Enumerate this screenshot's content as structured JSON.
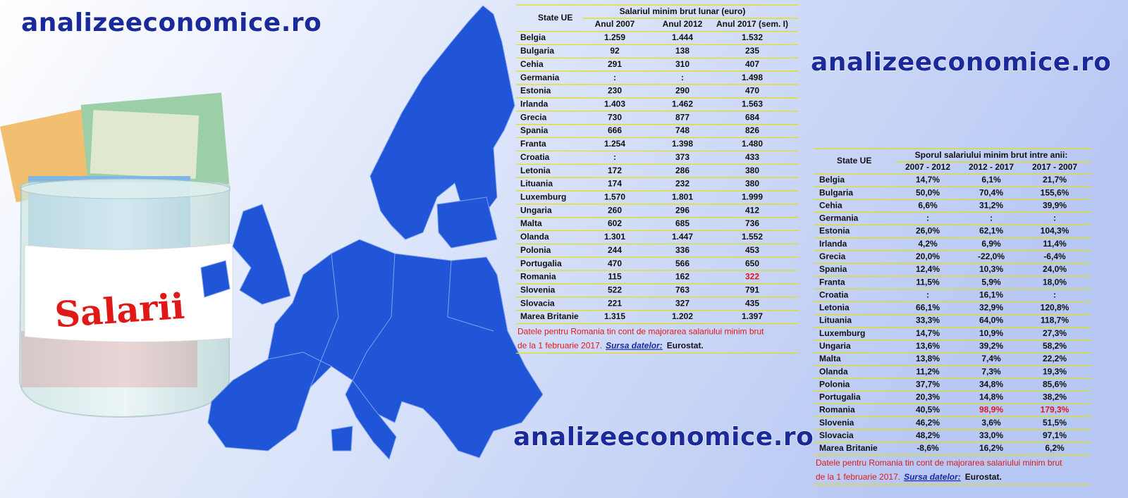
{
  "watermarks": [
    "analizeeconomice.ro",
    "analizeeconomice.ro",
    "analizeeconomice.ro"
  ],
  "jar_label": "Salarii",
  "highlight_color": "#e01818",
  "table1": {
    "col0": "State UE",
    "title": "Salariul minim brut lunar (euro)",
    "columns": [
      "Anul 2007",
      "Anul 2012",
      "Anul 2017 (sem. I)"
    ],
    "rows": [
      [
        "Belgia",
        "1.259",
        "1.444",
        "1.532"
      ],
      [
        "Bulgaria",
        "92",
        "138",
        "235"
      ],
      [
        "Cehia",
        "291",
        "310",
        "407"
      ],
      [
        "Germania",
        ":",
        ":",
        "1.498"
      ],
      [
        "Estonia",
        "230",
        "290",
        "470"
      ],
      [
        "Irlanda",
        "1.403",
        "1.462",
        "1.563"
      ],
      [
        "Grecia",
        "730",
        "877",
        "684"
      ],
      [
        "Spania",
        "666",
        "748",
        "826"
      ],
      [
        "Franta",
        "1.254",
        "1.398",
        "1.480"
      ],
      [
        "Croatia",
        ":",
        "373",
        "433"
      ],
      [
        "Letonia",
        "172",
        "286",
        "380"
      ],
      [
        "Lituania",
        "174",
        "232",
        "380"
      ],
      [
        "Luxemburg",
        "1.570",
        "1.801",
        "1.999"
      ],
      [
        "Ungaria",
        "260",
        "296",
        "412"
      ],
      [
        "Malta",
        "602",
        "685",
        "736"
      ],
      [
        "Olanda",
        "1.301",
        "1.447",
        "1.552"
      ],
      [
        "Polonia",
        "244",
        "336",
        "453"
      ],
      [
        "Portugalia",
        "470",
        "566",
        "650"
      ],
      [
        "Romania",
        "115",
        "162",
        "322"
      ],
      [
        "Slovenia",
        "522",
        "763",
        "791"
      ],
      [
        "Slovacia",
        "221",
        "327",
        "435"
      ],
      [
        "Marea Britanie",
        "1.315",
        "1.202",
        "1.397"
      ]
    ],
    "highlighted": [
      [
        18,
        3
      ]
    ],
    "note": {
      "line1": "Datele pentru Romania tin cont de majorarea salariului minim brut",
      "line2": "de la 1 februarie 2017.",
      "source_label": "Sursa datelor:",
      "source": "Eurostat."
    }
  },
  "table2": {
    "col0": "State UE",
    "title": "Sporul salariului minim brut intre anii:",
    "columns": [
      "2007 - 2012",
      "2012 - 2017",
      "2017 - 2007"
    ],
    "rows": [
      [
        "Belgia",
        "14,7%",
        "6,1%",
        "21,7%"
      ],
      [
        "Bulgaria",
        "50,0%",
        "70,4%",
        "155,6%"
      ],
      [
        "Cehia",
        "6,6%",
        "31,2%",
        "39,9%"
      ],
      [
        "Germania",
        ":",
        ":",
        ":"
      ],
      [
        "Estonia",
        "26,0%",
        "62,1%",
        "104,3%"
      ],
      [
        "Irlanda",
        "4,2%",
        "6,9%",
        "11,4%"
      ],
      [
        "Grecia",
        "20,0%",
        "-22,0%",
        "-6,4%"
      ],
      [
        "Spania",
        "12,4%",
        "10,3%",
        "24,0%"
      ],
      [
        "Franta",
        "11,5%",
        "5,9%",
        "18,0%"
      ],
      [
        "Croatia",
        ":",
        "16,1%",
        ":"
      ],
      [
        "Letonia",
        "66,1%",
        "32,9%",
        "120,8%"
      ],
      [
        "Lituania",
        "33,3%",
        "64,0%",
        "118,7%"
      ],
      [
        "Luxemburg",
        "14,7%",
        "10,9%",
        "27,3%"
      ],
      [
        "Ungaria",
        "13,6%",
        "39,2%",
        "58,2%"
      ],
      [
        "Malta",
        "13,8%",
        "7,4%",
        "22,2%"
      ],
      [
        "Olanda",
        "11,2%",
        "7,3%",
        "19,3%"
      ],
      [
        "Polonia",
        "37,7%",
        "34,8%",
        "85,6%"
      ],
      [
        "Portugalia",
        "20,3%",
        "14,8%",
        "38,2%"
      ],
      [
        "Romania",
        "40,5%",
        "98,9%",
        "179,3%"
      ],
      [
        "Slovenia",
        "46,2%",
        "3,6%",
        "51,5%"
      ],
      [
        "Slovacia",
        "48,2%",
        "33,0%",
        "97,1%"
      ],
      [
        "Marea Britanie",
        "-8,6%",
        "16,2%",
        "6,2%"
      ]
    ],
    "highlighted": [
      [
        18,
        2
      ],
      [
        18,
        3
      ]
    ],
    "note": {
      "line1": "Datele pentru Romania tin cont de majorarea salariului minim brut",
      "line2": "de la 1 februarie 2017.",
      "source_label": "Sursa datelor:",
      "source": "Eurostat."
    }
  }
}
